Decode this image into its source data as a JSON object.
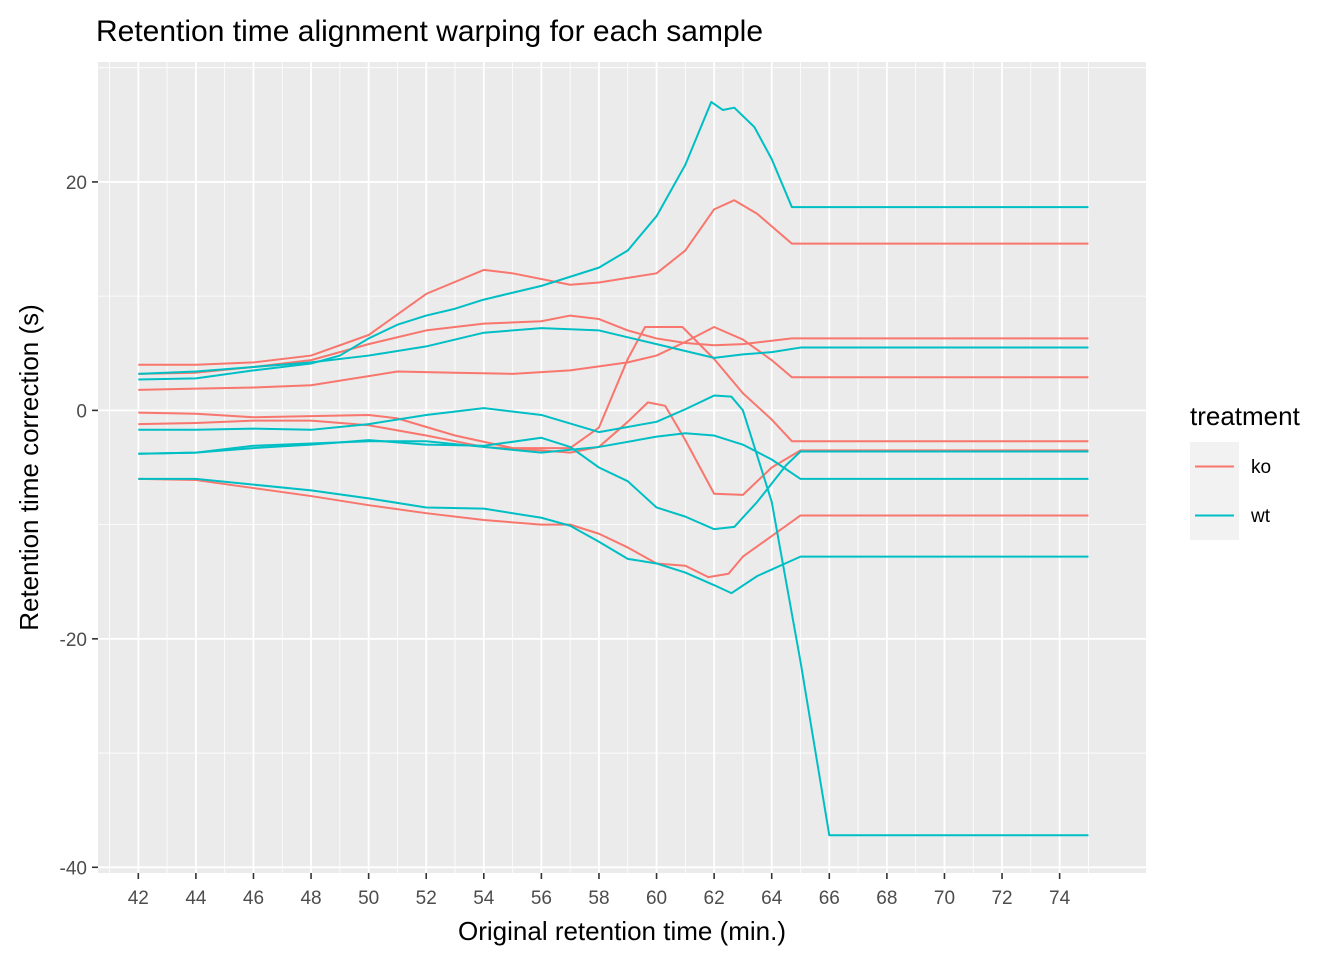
{
  "chart_data": {
    "type": "line",
    "title": "Retention time alignment warping for each sample",
    "xlabel": "Original retention time (min.)",
    "ylabel": "Retention time correction (s)",
    "xlim": [
      40.6,
      77.0
    ],
    "ylim": [
      -40.5,
      30.5
    ],
    "x_ticks": [
      42,
      44,
      46,
      48,
      50,
      52,
      54,
      56,
      58,
      60,
      62,
      64,
      66,
      68,
      70,
      72,
      74
    ],
    "y_ticks": [
      -40,
      -20,
      0,
      20
    ],
    "grid": true,
    "legend": {
      "title": "treatment",
      "position": "right",
      "entries": [
        {
          "label": "ko",
          "color": "#F8766D"
        },
        {
          "label": "wt",
          "color": "#00BFC4"
        }
      ]
    },
    "series": [
      {
        "name": "ko",
        "color": "#F8766D",
        "points": [
          [
            42,
            4.0
          ],
          [
            44,
            4.0
          ],
          [
            46,
            4.2
          ],
          [
            48,
            4.8
          ],
          [
            50,
            6.6
          ],
          [
            52,
            10.2
          ],
          [
            54,
            12.3
          ],
          [
            55,
            12.0
          ],
          [
            57,
            11.0
          ],
          [
            58,
            11.2
          ],
          [
            59,
            11.6
          ],
          [
            60,
            12.0
          ],
          [
            61,
            14.0
          ],
          [
            62,
            17.6
          ],
          [
            62.7,
            18.4
          ],
          [
            63.5,
            17.2
          ],
          [
            64.7,
            14.6
          ],
          [
            75,
            14.6
          ]
        ]
      },
      {
        "name": "ko",
        "color": "#F8766D",
        "points": [
          [
            42,
            3.2
          ],
          [
            44,
            3.3
          ],
          [
            46,
            3.8
          ],
          [
            48,
            4.4
          ],
          [
            50,
            5.8
          ],
          [
            51,
            6.4
          ],
          [
            52,
            7.0
          ],
          [
            54,
            7.6
          ],
          [
            56,
            7.8
          ],
          [
            57,
            8.3
          ],
          [
            58,
            8.0
          ],
          [
            59,
            7.0
          ],
          [
            60,
            6.3
          ],
          [
            61,
            5.9
          ],
          [
            62,
            5.7
          ],
          [
            63,
            5.8
          ],
          [
            64.7,
            6.3
          ],
          [
            75,
            6.3
          ]
        ]
      },
      {
        "name": "ko",
        "color": "#F8766D",
        "points": [
          [
            42,
            1.8
          ],
          [
            44,
            1.9
          ],
          [
            46,
            2.0
          ],
          [
            48,
            2.2
          ],
          [
            50,
            3.0
          ],
          [
            51,
            3.4
          ],
          [
            53,
            3.3
          ],
          [
            55,
            3.2
          ],
          [
            57,
            3.5
          ],
          [
            59,
            4.2
          ],
          [
            60,
            4.8
          ],
          [
            61,
            6.0
          ],
          [
            62,
            7.3
          ],
          [
            63,
            6.2
          ],
          [
            64,
            4.4
          ],
          [
            64.7,
            2.9
          ],
          [
            75,
            2.9
          ]
        ]
      },
      {
        "name": "ko",
        "color": "#F8766D",
        "points": [
          [
            42,
            -0.2
          ],
          [
            44,
            -0.3
          ],
          [
            46,
            -0.6
          ],
          [
            48,
            -0.5
          ],
          [
            50,
            -0.4
          ],
          [
            51,
            -0.7
          ],
          [
            53,
            -2.2
          ],
          [
            55,
            -3.3
          ],
          [
            57,
            -3.3
          ],
          [
            58,
            -1.5
          ],
          [
            59,
            4.5
          ],
          [
            59.6,
            7.3
          ],
          [
            60.9,
            7.3
          ],
          [
            62,
            4.5
          ],
          [
            63,
            1.5
          ],
          [
            64,
            -0.8
          ],
          [
            64.7,
            -2.7
          ],
          [
            75,
            -2.7
          ]
        ]
      },
      {
        "name": "ko",
        "color": "#F8766D",
        "points": [
          [
            42,
            -1.2
          ],
          [
            44,
            -1.1
          ],
          [
            46,
            -0.9
          ],
          [
            48,
            -0.9
          ],
          [
            50,
            -1.3
          ],
          [
            52,
            -2.2
          ],
          [
            54,
            -3.2
          ],
          [
            56,
            -3.5
          ],
          [
            57,
            -3.7
          ],
          [
            58,
            -3.2
          ],
          [
            59,
            -1.0
          ],
          [
            59.7,
            0.7
          ],
          [
            60.3,
            0.4
          ],
          [
            61,
            -2.6
          ],
          [
            62,
            -7.3
          ],
          [
            63,
            -7.4
          ],
          [
            64,
            -5.0
          ],
          [
            65,
            -3.5
          ],
          [
            75,
            -3.5
          ]
        ]
      },
      {
        "name": "ko",
        "color": "#F8766D",
        "points": [
          [
            42,
            -6.0
          ],
          [
            44,
            -6.1
          ],
          [
            46,
            -6.8
          ],
          [
            48,
            -7.5
          ],
          [
            50,
            -8.3
          ],
          [
            52,
            -9.0
          ],
          [
            54,
            -9.6
          ],
          [
            56,
            -10.0
          ],
          [
            57,
            -10.0
          ],
          [
            58,
            -10.8
          ],
          [
            59,
            -12.0
          ],
          [
            60,
            -13.4
          ],
          [
            61,
            -13.6
          ],
          [
            61.8,
            -14.6
          ],
          [
            62.5,
            -14.3
          ],
          [
            63,
            -12.8
          ],
          [
            64,
            -11.0
          ],
          [
            65,
            -9.2
          ],
          [
            75,
            -9.2
          ]
        ]
      },
      {
        "name": "wt",
        "color": "#00BFC4",
        "points": [
          [
            42,
            2.7
          ],
          [
            44,
            2.8
          ],
          [
            46,
            3.5
          ],
          [
            48,
            4.1
          ],
          [
            49,
            4.8
          ],
          [
            50,
            6.3
          ],
          [
            51,
            7.5
          ],
          [
            52,
            8.3
          ],
          [
            53,
            8.9
          ],
          [
            54,
            9.7
          ],
          [
            56,
            10.9
          ],
          [
            58,
            12.5
          ],
          [
            59,
            14.0
          ],
          [
            60,
            17.0
          ],
          [
            61,
            21.5
          ],
          [
            61.9,
            27.0
          ],
          [
            62.3,
            26.3
          ],
          [
            62.7,
            26.5
          ],
          [
            63.4,
            24.8
          ],
          [
            64,
            22.0
          ],
          [
            64.7,
            17.8
          ],
          [
            75,
            17.8
          ]
        ]
      },
      {
        "name": "wt",
        "color": "#00BFC4",
        "points": [
          [
            42,
            3.2
          ],
          [
            44,
            3.4
          ],
          [
            46,
            3.8
          ],
          [
            48,
            4.2
          ],
          [
            50,
            4.8
          ],
          [
            52,
            5.6
          ],
          [
            54,
            6.8
          ],
          [
            56,
            7.2
          ],
          [
            58,
            7.0
          ],
          [
            60,
            5.8
          ],
          [
            62,
            4.6
          ],
          [
            63,
            4.9
          ],
          [
            64,
            5.1
          ],
          [
            65,
            5.5
          ],
          [
            75,
            5.5
          ]
        ]
      },
      {
        "name": "wt",
        "color": "#00BFC4",
        "points": [
          [
            42,
            -1.7
          ],
          [
            44,
            -1.7
          ],
          [
            46,
            -1.6
          ],
          [
            48,
            -1.7
          ],
          [
            50,
            -1.2
          ],
          [
            52,
            -0.4
          ],
          [
            54,
            0.2
          ],
          [
            56,
            -0.4
          ],
          [
            58,
            -1.9
          ],
          [
            60,
            -1.0
          ],
          [
            61,
            0.1
          ],
          [
            62,
            1.3
          ],
          [
            62.6,
            1.2
          ],
          [
            63,
            0.0
          ],
          [
            64,
            -8.0
          ],
          [
            65,
            -22.0
          ],
          [
            66,
            -37.2
          ],
          [
            75,
            -37.2
          ]
        ]
      },
      {
        "name": "wt",
        "color": "#00BFC4",
        "points": [
          [
            42,
            -3.8
          ],
          [
            44,
            -3.7
          ],
          [
            46,
            -3.1
          ],
          [
            48,
            -2.9
          ],
          [
            50,
            -2.7
          ],
          [
            52,
            -2.7
          ],
          [
            54,
            -3.2
          ],
          [
            56,
            -3.7
          ],
          [
            58,
            -3.2
          ],
          [
            60,
            -2.3
          ],
          [
            61,
            -2.0
          ],
          [
            62,
            -2.2
          ],
          [
            63,
            -3.0
          ],
          [
            64,
            -4.3
          ],
          [
            65,
            -6.0
          ],
          [
            75,
            -6.0
          ]
        ]
      },
      {
        "name": "wt",
        "color": "#00BFC4",
        "points": [
          [
            42,
            -3.8
          ],
          [
            44,
            -3.7
          ],
          [
            46,
            -3.3
          ],
          [
            48,
            -3.0
          ],
          [
            50,
            -2.6
          ],
          [
            52,
            -3.0
          ],
          [
            54,
            -3.1
          ],
          [
            56,
            -2.4
          ],
          [
            57,
            -3.2
          ],
          [
            58,
            -5.0
          ],
          [
            59,
            -6.2
          ],
          [
            60,
            -8.5
          ],
          [
            61,
            -9.3
          ],
          [
            62,
            -10.4
          ],
          [
            62.7,
            -10.2
          ],
          [
            63.5,
            -8.0
          ],
          [
            64.5,
            -4.8
          ],
          [
            65,
            -3.6
          ],
          [
            75,
            -3.6
          ]
        ]
      },
      {
        "name": "wt",
        "color": "#00BFC4",
        "points": [
          [
            42,
            -6.0
          ],
          [
            44,
            -6.0
          ],
          [
            46,
            -6.5
          ],
          [
            48,
            -7.0
          ],
          [
            50,
            -7.7
          ],
          [
            52,
            -8.5
          ],
          [
            54,
            -8.6
          ],
          [
            56,
            -9.4
          ],
          [
            57,
            -10.1
          ],
          [
            58,
            -11.5
          ],
          [
            59,
            -13.0
          ],
          [
            60,
            -13.4
          ],
          [
            61,
            -14.2
          ],
          [
            62,
            -15.3
          ],
          [
            62.6,
            -16.0
          ],
          [
            63.5,
            -14.5
          ],
          [
            65,
            -12.8
          ],
          [
            75,
            -12.8
          ]
        ]
      }
    ]
  }
}
